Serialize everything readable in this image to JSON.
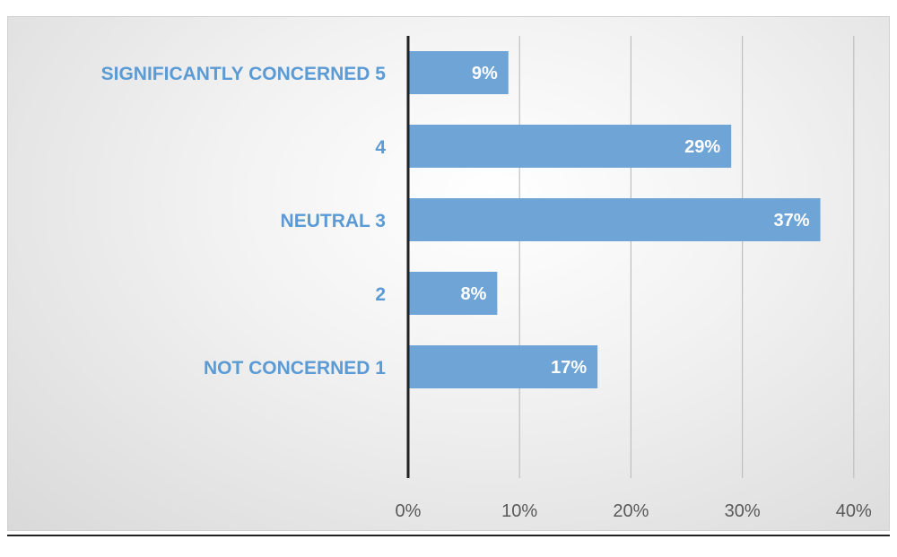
{
  "colors": {
    "bar": "#6fa4d7",
    "category_label": "#5b9bd5",
    "gridline": "#bfbfbf",
    "axis": "#222222"
  },
  "chart_data": {
    "type": "bar",
    "orientation": "horizontal",
    "categories": [
      "SIGNIFICANTLY CONCERNED 5",
      "4",
      "NEUTRAL 3",
      "2",
      "NOT CONCERNED 1"
    ],
    "values": [
      9,
      29,
      37,
      8,
      17
    ],
    "value_labels": [
      "9%",
      "29%",
      "37%",
      "8%",
      "17%"
    ],
    "x_ticks": [
      "0%",
      "10%",
      "20%",
      "30%",
      "40%"
    ],
    "x_tick_values": [
      0,
      10,
      20,
      30,
      40
    ],
    "xlim": [
      0,
      40
    ],
    "grid": true,
    "legend": "none"
  }
}
